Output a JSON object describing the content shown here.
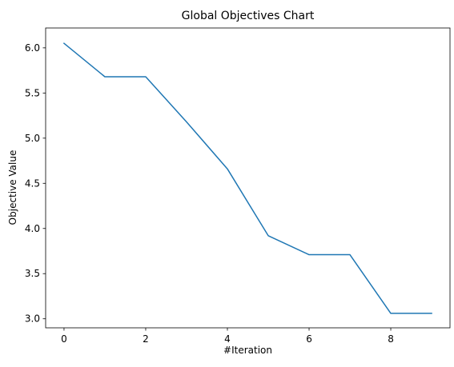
{
  "chart_data": {
    "type": "line",
    "title": "Global Objectives Chart",
    "xlabel": "#Iteration",
    "ylabel": "Objective Value",
    "xlim": [
      -0.45,
      9.45
    ],
    "ylim": [
      2.9,
      6.22
    ],
    "x_ticks": [
      0,
      2,
      4,
      6,
      8
    ],
    "y_ticks": [
      3.0,
      3.5,
      4.0,
      4.5,
      5.0,
      5.5,
      6.0
    ],
    "y_tick_labels": [
      "3.0",
      "3.5",
      "4.0",
      "4.5",
      "5.0",
      "5.5",
      "6.0"
    ],
    "grid": false,
    "series": [
      {
        "x": [
          0,
          1,
          2,
          3,
          4,
          5,
          6,
          7,
          8,
          9
        ],
        "values": [
          6.05,
          5.68,
          5.68,
          5.18,
          4.66,
          3.92,
          3.71,
          3.71,
          3.06,
          3.06
        ],
        "color": "#1f77b4"
      }
    ]
  }
}
